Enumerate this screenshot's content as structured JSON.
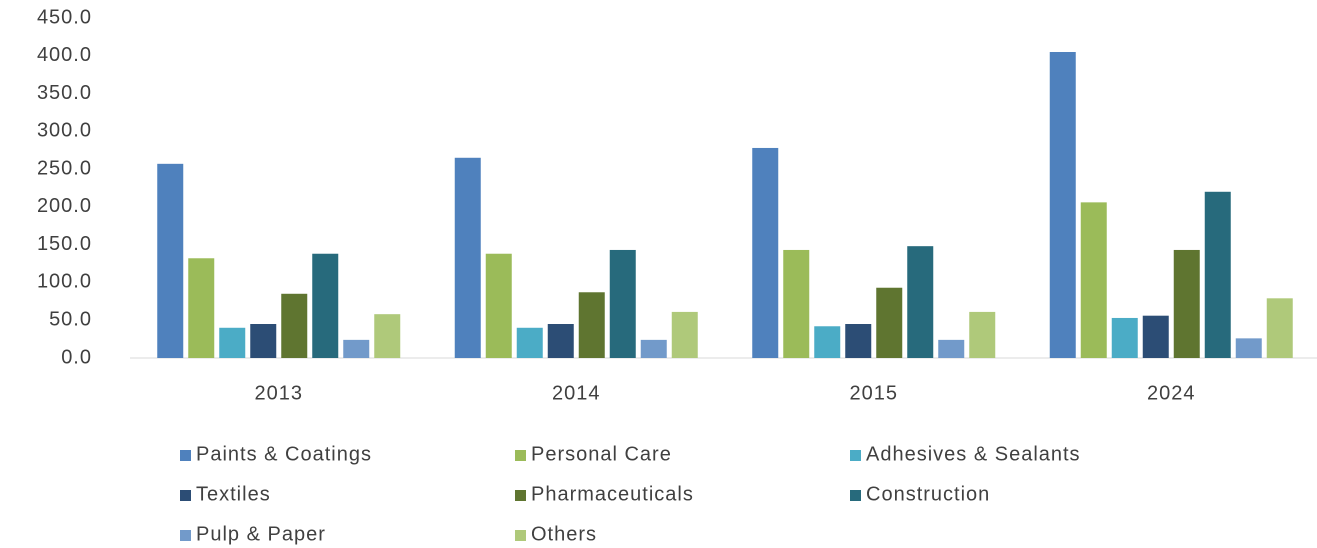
{
  "chart_data": {
    "type": "bar",
    "categories": [
      "2013",
      "2014",
      "2015",
      "2024"
    ],
    "series": [
      {
        "name": "Paints & Coatings",
        "color": "#4f81bd",
        "values": [
          257,
          265,
          278,
          405
        ]
      },
      {
        "name": "Personal Care",
        "color": "#9bbb59",
        "values": [
          132,
          138,
          143,
          206
        ]
      },
      {
        "name": "Adhesives & Sealants",
        "color": "#4bacc6",
        "values": [
          40,
          40,
          42,
          53
        ]
      },
      {
        "name": "Textiles",
        "color": "#2c4d75",
        "values": [
          45,
          45,
          45,
          56
        ]
      },
      {
        "name": "Pharmaceuticals",
        "color": "#5f7530",
        "values": [
          85,
          87,
          93,
          143
        ]
      },
      {
        "name": "Construction",
        "color": "#276a7c",
        "values": [
          138,
          143,
          148,
          220
        ]
      },
      {
        "name": "Pulp & Paper",
        "color": "#729aca",
        "values": [
          24,
          24,
          24,
          26
        ]
      },
      {
        "name": "Others",
        "color": "#afc97a",
        "values": [
          58,
          61,
          61,
          79
        ]
      }
    ],
    "ylim": [
      0,
      450
    ],
    "yticks": [
      {
        "value": 0,
        "label": "0.0"
      },
      {
        "value": 50,
        "label": "50.0"
      },
      {
        "value": 100,
        "label": "100.0"
      },
      {
        "value": 150,
        "label": "150.0"
      },
      {
        "value": 200,
        "label": "200.0"
      },
      {
        "value": 250,
        "label": "250.0"
      },
      {
        "value": 300,
        "label": "300.0"
      },
      {
        "value": 350,
        "label": "350.0"
      },
      {
        "value": 400,
        "label": "400.0"
      },
      {
        "value": 450,
        "label": "450.0"
      }
    ],
    "grid": false,
    "legend": "bottom"
  }
}
